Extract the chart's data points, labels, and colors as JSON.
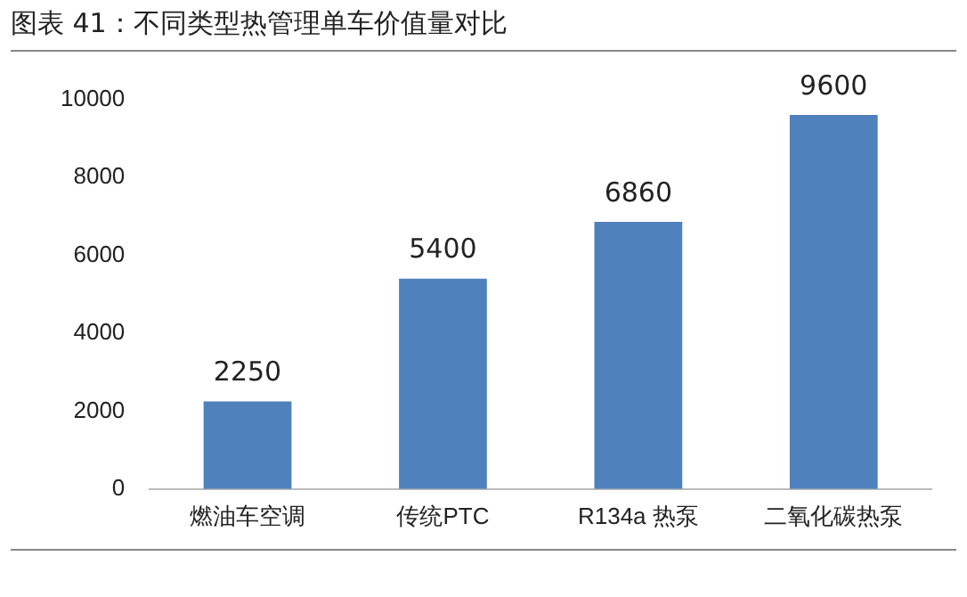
{
  "chart_data": {
    "type": "bar",
    "title": "图表 41：不同类型热管理单车价值量对比",
    "categories": [
      "燃油车空调",
      "传统PTC",
      "R134a 热泵",
      "二氧化碳热泵"
    ],
    "values": [
      2250,
      5400,
      6860,
      9600
    ],
    "color": "#4f81bd",
    "ylim": [
      0,
      10000
    ],
    "yticks": [
      0,
      2000,
      4000,
      6000,
      8000,
      10000
    ],
    "grid": false,
    "legend": false,
    "data_labels": true
  }
}
